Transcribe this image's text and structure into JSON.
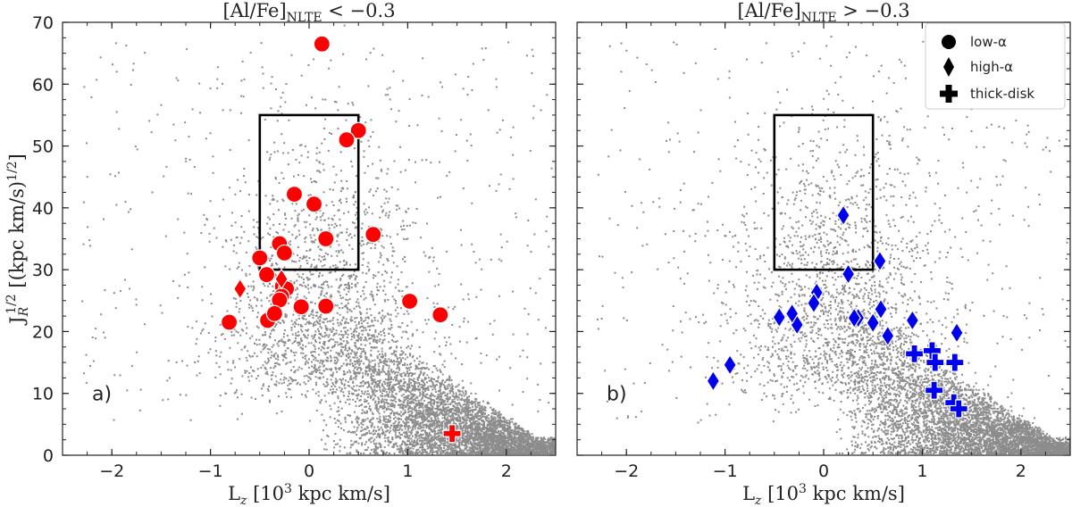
{
  "chart_data": {
    "type": "scatter",
    "colors": {
      "background_stars": "#8c8c8c",
      "panel_a": "#ff0000",
      "panel_b": "#0000ee",
      "marker_edge": "#ffffff"
    },
    "background": {
      "name": "field stars",
      "kind": "dense cloud",
      "notes": "grey points; dense wedge toward large Lz, small JR"
    },
    "legend": {
      "placement": "top-right of panel b",
      "entries": [
        {
          "marker": "circle",
          "label": "low-α"
        },
        {
          "marker": "diamond",
          "label": "high-α"
        },
        {
          "marker": "plus",
          "label": "thick-disk"
        }
      ]
    },
    "panels": [
      {
        "id": "a",
        "panel_label": "a)",
        "title_main": "[Al/Fe]",
        "title_sub": "NLTE",
        "title_rest": " < −0.3",
        "color": "#ff0000",
        "xlabel_main": "L",
        "xlabel_sub": "z",
        "xlabel_rest": " [10",
        "xlabel_sup": "3",
        "xlabel_end": " kpc km/s]",
        "ylabel_main": "J",
        "ylabel_sub": "R",
        "ylabel_sup": "1/2",
        "ylabel_rest": " [(kpc km/s)",
        "ylabel_sup2": "1/2",
        "ylabel_end": "]",
        "xlim": [
          -2.5,
          2.5
        ],
        "ylim": [
          0,
          70
        ],
        "xticks": [
          -2,
          -1,
          0,
          1,
          2
        ],
        "xtick_labels": [
          "−2",
          "−1",
          "0",
          "1",
          "2"
        ],
        "yticks": [
          0,
          10,
          20,
          30,
          40,
          50,
          60,
          70
        ],
        "ytick_labels": [
          "0",
          "10",
          "20",
          "30",
          "40",
          "50",
          "60",
          "70"
        ],
        "box": {
          "x": [
            -0.5,
            0.5
          ],
          "y": [
            30,
            55
          ]
        },
        "series": [
          {
            "name": "low-α",
            "marker": "circle",
            "x": [
              0.13,
              0.5,
              0.38,
              -0.15,
              0.05,
              -0.3,
              0.17,
              0.65,
              -0.25,
              -0.5,
              -0.43,
              -0.27,
              -0.23,
              -0.28,
              -0.3,
              -0.42,
              -0.35,
              -0.08,
              0.17,
              1.02,
              1.33,
              -0.81
            ],
            "y": [
              66.5,
              52.5,
              51.0,
              42.2,
              40.6,
              34.2,
              35.0,
              35.7,
              32.7,
              31.9,
              29.2,
              27.3,
              26.9,
              25.7,
              25.1,
              21.8,
              22.9,
              24.0,
              24.1,
              24.9,
              22.7,
              21.5
            ]
          },
          {
            "name": "high-α",
            "marker": "diamond",
            "x": [
              -0.7,
              -0.28
            ],
            "y": [
              26.9,
              28.5
            ]
          },
          {
            "name": "thick-disk",
            "marker": "plus",
            "x": [
              1.45
            ],
            "y": [
              3.5
            ]
          }
        ]
      },
      {
        "id": "b",
        "panel_label": "b)",
        "title_main": "[Al/Fe]",
        "title_sub": "NLTE",
        "title_rest": " > −0.3",
        "color": "#0000ee",
        "xlabel_main": "L",
        "xlabel_sub": "z",
        "xlabel_rest": " [10",
        "xlabel_sup": "3",
        "xlabel_end": " kpc km/s]",
        "xlim": [
          -2.5,
          2.5
        ],
        "ylim": [
          0,
          70
        ],
        "xticks": [
          -2,
          -1,
          0,
          1,
          2
        ],
        "xtick_labels": [
          "−2",
          "−1",
          "0",
          "1",
          "2"
        ],
        "yticks": [
          0,
          10,
          20,
          30,
          40,
          50,
          60,
          70
        ],
        "box": {
          "x": [
            -0.5,
            0.5
          ],
          "y": [
            30,
            55
          ]
        },
        "series": [
          {
            "name": "low-α",
            "marker": "circle",
            "x": [],
            "y": []
          },
          {
            "name": "high-α",
            "marker": "diamond",
            "x": [
              0.2,
              0.25,
              0.57,
              -0.07,
              -0.1,
              -0.27,
              -0.45,
              -0.32,
              0.35,
              0.31,
              0.5,
              0.58,
              0.65,
              0.9,
              1.35,
              -0.95,
              -1.12
            ],
            "y": [
              38.8,
              29.3,
              31.4,
              26.3,
              24.6,
              21.1,
              22.3,
              22.9,
              22.2,
              22.2,
              21.4,
              23.6,
              19.3,
              21.8,
              19.8,
              14.6,
              12.0
            ]
          },
          {
            "name": "thick-disk",
            "marker": "plus",
            "x": [
              0.92,
              1.1,
              1.13,
              1.33,
              1.12,
              1.32,
              1.37
            ],
            "y": [
              16.4,
              16.9,
              15.0,
              15.0,
              10.5,
              8.5,
              7.5
            ]
          }
        ]
      }
    ]
  }
}
